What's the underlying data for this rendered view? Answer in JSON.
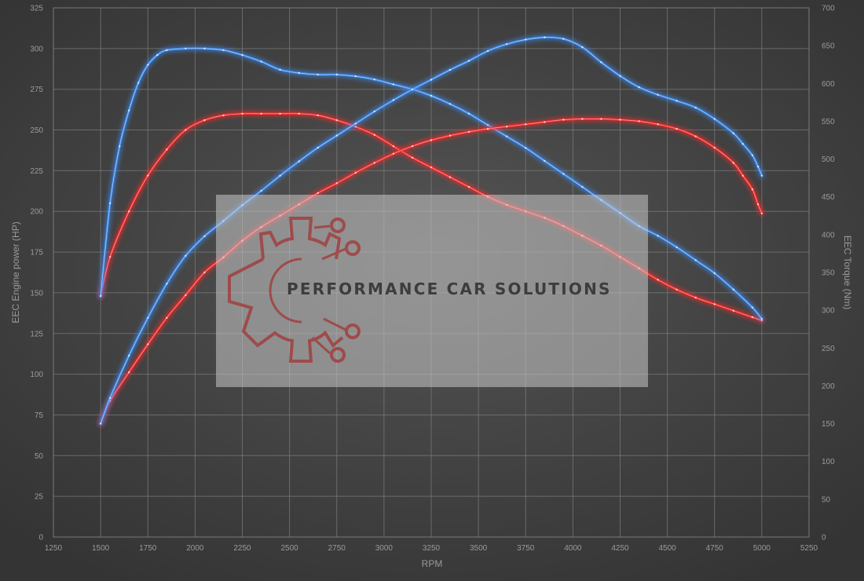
{
  "chart_data": {
    "type": "line",
    "xlabel": "RPM",
    "ylabel": "EEC Engine power (HP)",
    "y2label": "EEC Torque (Nm)",
    "xlim": [
      1250,
      5250
    ],
    "ylim": [
      0,
      325
    ],
    "y2lim": [
      0,
      700
    ],
    "x_ticks": [
      1250,
      1500,
      1750,
      2000,
      2250,
      2500,
      2750,
      3000,
      3250,
      3500,
      3750,
      4000,
      4250,
      4500,
      4750,
      5000,
      5250
    ],
    "y_ticks": [
      0,
      25,
      50,
      75,
      100,
      125,
      150,
      175,
      200,
      225,
      250,
      275,
      300,
      325
    ],
    "y2_ticks": [
      0,
      50,
      100,
      150,
      200,
      250,
      300,
      350,
      400,
      450,
      500,
      550,
      600,
      650,
      700
    ],
    "grid": true,
    "colors": {
      "stock": "#ff2a2a",
      "tuned": "#3e8ef5"
    },
    "series": [
      {
        "role": "stock_power",
        "axis": "left",
        "color": "#ff2a2a",
        "x": [
          1500,
          1550,
          1650,
          1750,
          1850,
          1950,
          2050,
          2150,
          2250,
          2350,
          2450,
          2550,
          2650,
          2750,
          2850,
          2950,
          3050,
          3150,
          3250,
          3350,
          3450,
          3550,
          3650,
          3750,
          3850,
          3950,
          4050,
          4150,
          4250,
          4350,
          4450,
          4550,
          4650,
          4750,
          4850,
          4950,
          5000
        ],
        "y": [
          148,
          172,
          200,
          222,
          238,
          250,
          256,
          259,
          260,
          260,
          260,
          260,
          259,
          256,
          252,
          247,
          240,
          233,
          227,
          221,
          215,
          209,
          204,
          200,
          196,
          191,
          185,
          179,
          172,
          165,
          158,
          152,
          147,
          143,
          139,
          135,
          133
        ]
      },
      {
        "role": "tuned_power",
        "axis": "left",
        "color": "#3e8ef5",
        "x": [
          1500,
          1550,
          1600,
          1650,
          1700,
          1750,
          1800,
          1850,
          1950,
          2050,
          2150,
          2250,
          2350,
          2450,
          2550,
          2650,
          2750,
          2850,
          2950,
          3050,
          3150,
          3250,
          3350,
          3450,
          3550,
          3650,
          3750,
          3850,
          3950,
          4050,
          4150,
          4250,
          4350,
          4450,
          4550,
          4650,
          4750,
          4850,
          4950,
          5000
        ],
        "y": [
          148,
          205,
          240,
          262,
          279,
          290,
          296,
          299,
          300,
          300,
          299,
          296,
          292,
          287,
          285,
          284,
          284,
          283,
          281,
          278,
          275,
          271,
          266,
          260,
          253,
          246,
          239,
          231,
          223,
          215,
          207,
          199,
          191,
          185,
          178,
          170,
          162,
          152,
          141,
          134
        ]
      },
      {
        "role": "stock_torque",
        "axis": "right",
        "color": "#ff2a2a",
        "x": [
          1500,
          1550,
          1650,
          1750,
          1850,
          1950,
          2050,
          2150,
          2250,
          2350,
          2450,
          2550,
          2650,
          2750,
          2850,
          2950,
          3050,
          3150,
          3250,
          3350,
          3450,
          3550,
          3650,
          3750,
          3850,
          3950,
          4050,
          4150,
          4250,
          4350,
          4450,
          4550,
          4650,
          4750,
          4850,
          4900,
          4950,
          4980,
          5000
        ],
        "y": [
          150,
          180,
          218,
          255,
          290,
          320,
          350,
          370,
          392,
          410,
          425,
          440,
          455,
          468,
          482,
          495,
          507,
          517,
          525,
          531,
          536,
          540,
          543,
          546,
          549,
          552,
          553,
          553,
          552,
          550,
          546,
          540,
          530,
          515,
          495,
          478,
          460,
          440,
          428
        ]
      },
      {
        "role": "tuned_torque",
        "axis": "right",
        "color": "#3e8ef5",
        "x": [
          1500,
          1550,
          1650,
          1750,
          1850,
          1950,
          2050,
          2150,
          2250,
          2350,
          2450,
          2550,
          2650,
          2750,
          2850,
          2950,
          3050,
          3150,
          3250,
          3350,
          3450,
          3550,
          3650,
          3750,
          3850,
          3950,
          4050,
          4150,
          4250,
          4350,
          4450,
          4550,
          4650,
          4750,
          4850,
          4900,
          4950,
          4980,
          5000
        ],
        "y": [
          150,
          184,
          240,
          290,
          335,
          372,
          398,
          418,
          439,
          458,
          478,
          497,
          515,
          531,
          547,
          563,
          578,
          592,
          605,
          618,
          630,
          643,
          652,
          658,
          661,
          659,
          648,
          628,
          610,
          595,
          585,
          577,
          568,
          553,
          534,
          520,
          505,
          490,
          478
        ]
      }
    ]
  },
  "watermark": {
    "text": "PERFORMANCE CAR SOLUTIONS"
  }
}
